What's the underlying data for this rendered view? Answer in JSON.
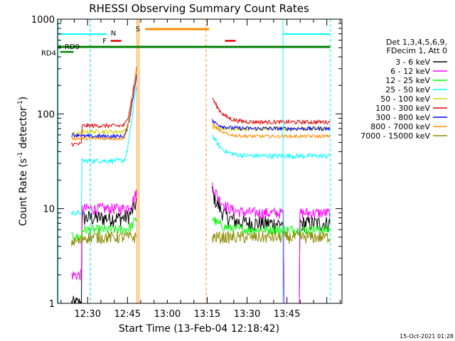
{
  "chart_data": {
    "type": "line",
    "title": "RHESSI Observing Summary Count Rates",
    "xlabel": "Start Time (13-Feb-04 12:18:42)",
    "ylabel": {
      "main": "Count Rate (s",
      "sup1": "-1",
      "mid": " detector",
      "sup2": "-1",
      "end": ")"
    },
    "yscale": "log",
    "ylim": [
      1,
      1000
    ],
    "xlim_minutes": [
      0,
      107
    ],
    "x_ticks": [
      {
        "label": "12:30",
        "minutes": 11.3
      },
      {
        "label": "12:45",
        "minutes": 26.3
      },
      {
        "label": "13:00",
        "minutes": 41.3
      },
      {
        "label": "13:15",
        "minutes": 56.3
      },
      {
        "label": "13:30",
        "minutes": 71.3
      },
      {
        "label": "13:45",
        "minutes": 86.3
      }
    ],
    "y_ticks": [
      {
        "label": "1",
        "value": 1
      },
      {
        "label": "10",
        "value": 10
      },
      {
        "label": "100",
        "value": 100
      },
      {
        "label": "1000",
        "value": 1000
      }
    ],
    "legend_header": [
      "Det 1,3,4,5,6,9,",
      "FDecim 1, Att 0"
    ],
    "series": [
      {
        "name": "3 - 6 keV",
        "color": "#000000",
        "key": "s1"
      },
      {
        "name": "6 - 12 keV",
        "color": "#ff00ff",
        "key": "s2"
      },
      {
        "name": "12 - 25 keV",
        "color": "#00ff00",
        "key": "s3"
      },
      {
        "name": "25 - 50 keV",
        "color": "#00ffff",
        "key": "s4"
      },
      {
        "name": "50 - 100 keV",
        "color": "#d4d400",
        "key": "s5"
      },
      {
        "name": "100 - 300 keV",
        "color": "#e00000",
        "key": "s6"
      },
      {
        "name": "300 - 800 keV",
        "color": "#0000ff",
        "key": "s7"
      },
      {
        "name": "800 - 7000 keV",
        "color": "#ff8c00",
        "key": "s8"
      },
      {
        "name": "7000 - 15000 keV",
        "color": "#8b8b00",
        "key": "s9"
      }
    ],
    "flag_labels": {
      "N": {
        "text": "N",
        "color": "#00ccff"
      },
      "F": {
        "text": "F",
        "color": "#e00000"
      },
      "S": {
        "text": "S",
        "color": "#ff8c00"
      },
      "RD9": {
        "text": "RD9",
        "color": "#008000"
      },
      "RD4": {
        "text": "RD4",
        "color": "#008000"
      }
    },
    "timestamp": "15-Oct-2021 01:28"
  }
}
